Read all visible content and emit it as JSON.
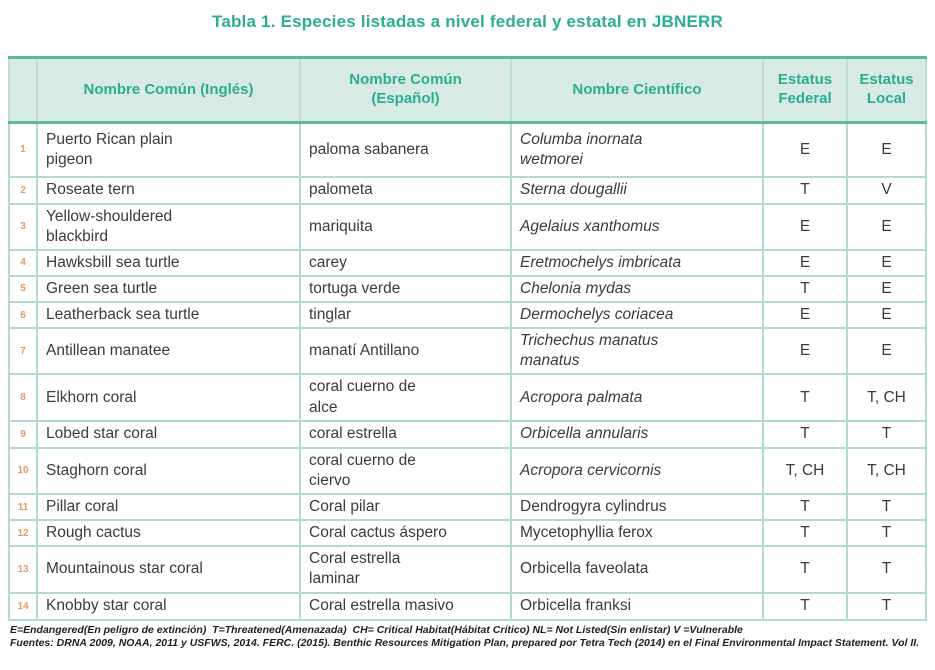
{
  "title": "Tabla 1. Especies listadas a nivel federal y estatal en JBNERR",
  "colors": {
    "accent_teal": "#2bae91",
    "border_strong": "#5eb9a3",
    "border_light": "#b0dbcd",
    "header_bg": "#d7ebe4",
    "row_number_orange": "#e8995f",
    "body_text": "#3b3b3b"
  },
  "table": {
    "headers": {
      "number": "",
      "common_en": "Nombre Común (Inglés)",
      "common_es": "Nombre Común\n(Español)",
      "scientific": "Nombre Científico",
      "federal": "Estatus\nFederal",
      "local": "Estatus\nLocal"
    },
    "rows": [
      {
        "num": "1",
        "en": "Puerto Rican plain\npigeon",
        "es": "paloma sabanera",
        "sci": "Columba inornata\nwetmorei",
        "sci_italic": true,
        "federal": "E",
        "local": "E"
      },
      {
        "num": "2",
        "en": "Roseate tern",
        "es": "palometa",
        "sci": "Sterna dougallii",
        "sci_italic": true,
        "federal": "T",
        "local": "V"
      },
      {
        "num": "3",
        "en": "Yellow-shouldered\nblackbird",
        "es": "mariquita",
        "sci": "Agelaius xanthomus",
        "sci_italic": true,
        "federal": "E",
        "local": "E"
      },
      {
        "num": "4",
        "en": "Hawksbill sea turtle",
        "es": "carey",
        "sci": "Eretmochelys imbricata",
        "sci_italic": true,
        "federal": "E",
        "local": "E"
      },
      {
        "num": "5",
        "en": "Green sea turtle",
        "es": "tortuga verde",
        "sci": "Chelonia mydas",
        "sci_italic": true,
        "federal": "T",
        "local": "E"
      },
      {
        "num": "6",
        "en": "Leatherback sea turtle",
        "es": "tinglar",
        "sci": "Dermochelys coriacea",
        "sci_italic": true,
        "federal": "E",
        "local": "E"
      },
      {
        "num": "7",
        "en": "Antillean manatee",
        "es": "manatí Antillano",
        "sci": "Trichechus manatus\nmanatus",
        "sci_italic": true,
        "federal": "E",
        "local": "E"
      },
      {
        "num": "8",
        "en": "Elkhorn coral",
        "es": "coral cuerno de\nalce",
        "sci": "Acropora palmata",
        "sci_italic": true,
        "federal": "T",
        "local": "T, CH"
      },
      {
        "num": "9",
        "en": "Lobed star coral",
        "es": "coral estrella",
        "sci": "Orbicella annularis",
        "sci_italic": true,
        "federal": "T",
        "local": "T"
      },
      {
        "num": "10",
        "en": "Staghorn coral",
        "es": "coral cuerno de\nciervo",
        "sci": "Acropora cervicornis",
        "sci_italic": true,
        "federal": "T, CH",
        "local": "T, CH"
      },
      {
        "num": "11",
        "en": "Pillar coral",
        "es": "Coral pilar",
        "sci": "Dendrogyra cylindrus",
        "sci_italic": false,
        "federal": "T",
        "local": "T"
      },
      {
        "num": "12",
        "en": "Rough cactus",
        "es": "Coral cactus áspero",
        "sci": "Mycetophyllia ferox",
        "sci_italic": false,
        "federal": "T",
        "local": "T"
      },
      {
        "num": "13",
        "en": "Mountainous star coral",
        "es": "Coral estrella\nlaminar",
        "sci": "Orbicella  faveolata",
        "sci_italic": false,
        "federal": "T",
        "local": "T"
      },
      {
        "num": "14",
        "en": "Knobby star coral",
        "es": "Coral estrella masivo",
        "sci": "Orbicella  franksi",
        "sci_italic": false,
        "federal": "T",
        "local": "T"
      }
    ]
  },
  "footnotes": {
    "legend": "E=Endangered(En peligro de extinción)  T=Threatened(Amenazada)  CH= Critical Habitat(Hábitat Crítico) NL= Not Listed(Sin enlistar) V =Vulnerable",
    "sources": "Fuentes: DRNA 2009, NOAA, 2011 y USFWS, 2014. FERC. (2015). Benthic Resources Mitigation Plan, prepared por Tetra Tech (2014) en el Final Environmental Impact Statement. Vol II."
  }
}
